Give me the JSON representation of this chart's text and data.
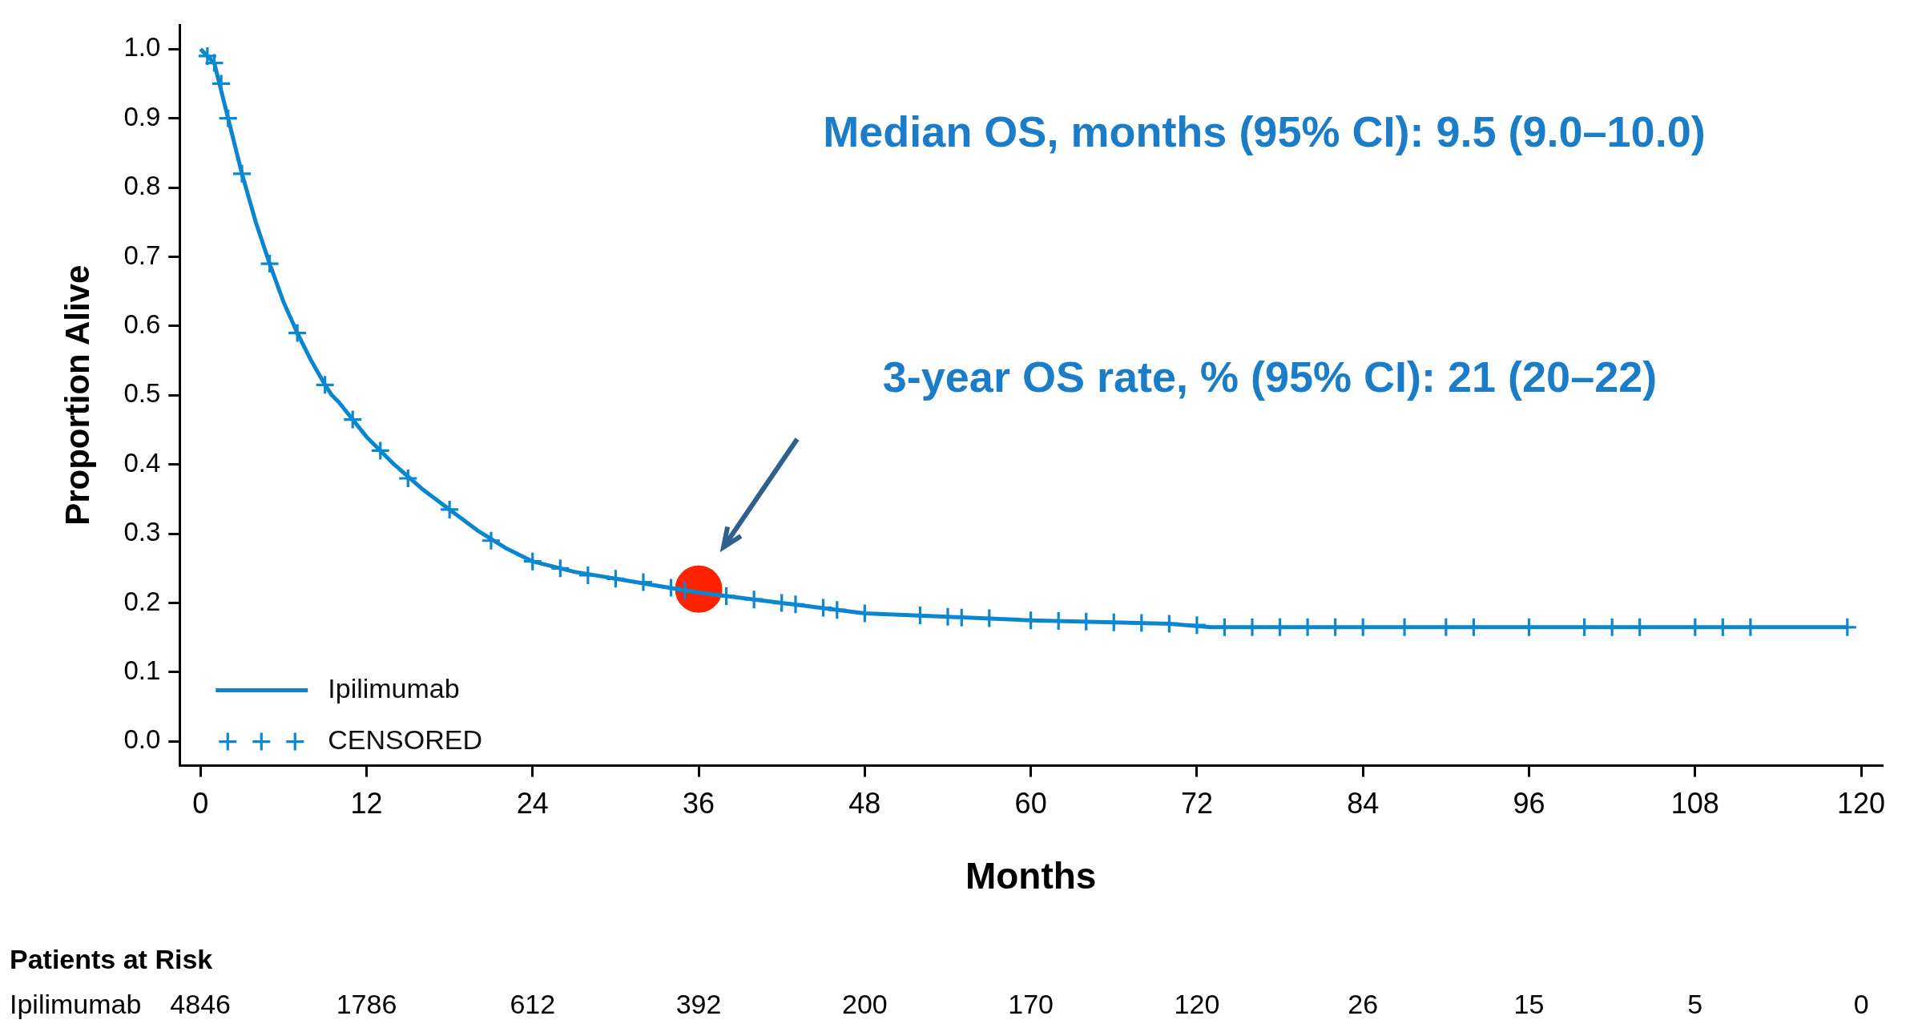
{
  "chart_data": {
    "type": "line",
    "xlabel": "Months",
    "ylabel": "Proportion Alive",
    "annotations": [
      "Median OS, months (95% CI): 9.5 (9.0–10.0)",
      "3-year OS rate, % (95% CI): 21 (20–22)",
      "Patients at Risk",
      "Ipilimumab",
      "4846",
      "1786",
      "612",
      "392",
      "200",
      "170",
      "120",
      "26",
      "15",
      "5",
      "0"
    ],
    "xlim": [
      -1.5,
      121.5
    ],
    "ylim": [
      -0.035,
      1.035
    ],
    "xticks": [
      0,
      12,
      24,
      36,
      48,
      60,
      72,
      84,
      96,
      108,
      120
    ],
    "yticks": [
      {
        "value": 0,
        "label": "0.0"
      },
      {
        "value": 0.1,
        "label": "0.1"
      },
      {
        "value": 0.2,
        "label": "0.2"
      },
      {
        "value": 0.3,
        "label": "0.3"
      },
      {
        "value": 0.4,
        "label": "0.4"
      },
      {
        "value": 0.5,
        "label": "0.5"
      },
      {
        "value": 0.6,
        "label": "0.6"
      },
      {
        "value": 0.7,
        "label": "0.7"
      },
      {
        "value": 0.8,
        "label": "0.8"
      },
      {
        "value": 0.9,
        "label": "0.9"
      },
      {
        "value": 1,
        "label": "1.0"
      }
    ],
    "grid": false,
    "legend": "bottom left",
    "series": [
      {
        "name": "Ipilimumab",
        "color": "#0a86d0",
        "marker": "none",
        "x": [
          0,
          1,
          2,
          3,
          4,
          5,
          6,
          7,
          8,
          9,
          9.5,
          10,
          12,
          14,
          16,
          18,
          20,
          22,
          24,
          27,
          30,
          33,
          36,
          40,
          44,
          48,
          54,
          60,
          66,
          70,
          73,
          78,
          84,
          96,
          108,
          119
        ],
        "values": [
          1,
          0.98,
          0.9,
          0.82,
          0.75,
          0.69,
          0.635,
          0.59,
          0.55,
          0.515,
          0.5,
          0.49,
          0.44,
          0.4,
          0.365,
          0.335,
          0.305,
          0.28,
          0.26,
          0.245,
          0.235,
          0.225,
          0.215,
          0.205,
          0.195,
          0.185,
          0.18,
          0.175,
          0.172,
          0.17,
          0.165,
          0.165,
          0.165,
          0.165,
          0.165,
          0.165
        ]
      },
      {
        "name": "CENSORED",
        "type": "scatter",
        "color": "#0b88d3",
        "marker": "cross",
        "x": [
          0.5,
          1,
          1.5,
          2,
          3,
          5,
          7,
          9,
          11,
          13,
          15,
          18,
          21,
          24,
          26,
          28,
          30,
          32,
          34,
          35,
          38,
          40,
          42,
          43,
          45,
          46,
          48,
          52,
          54,
          55,
          57,
          60,
          62,
          64,
          66,
          68,
          70,
          72,
          74,
          76,
          78,
          80,
          82,
          84,
          87,
          90,
          92,
          96,
          100,
          102,
          104,
          108,
          110,
          112,
          119
        ],
        "values": [
          0.99,
          0.98,
          0.95,
          0.9,
          0.82,
          0.69,
          0.59,
          0.515,
          0.465,
          0.42,
          0.38,
          0.335,
          0.29,
          0.26,
          0.25,
          0.24,
          0.235,
          0.23,
          0.222,
          0.218,
          0.21,
          0.205,
          0.2,
          0.198,
          0.193,
          0.19,
          0.185,
          0.182,
          0.18,
          0.179,
          0.178,
          0.175,
          0.174,
          0.173,
          0.172,
          0.171,
          0.17,
          0.168,
          0.165,
          0.165,
          0.165,
          0.165,
          0.165,
          0.165,
          0.165,
          0.165,
          0.165,
          0.165,
          0.165,
          0.165,
          0.165,
          0.165,
          0.165,
          0.165,
          0.165
        ]
      },
      {
        "type": "scatter",
        "color": "#ff2200",
        "marker": "circle",
        "x": [
          36
        ],
        "values": [
          0.22
        ]
      }
    ]
  }
}
